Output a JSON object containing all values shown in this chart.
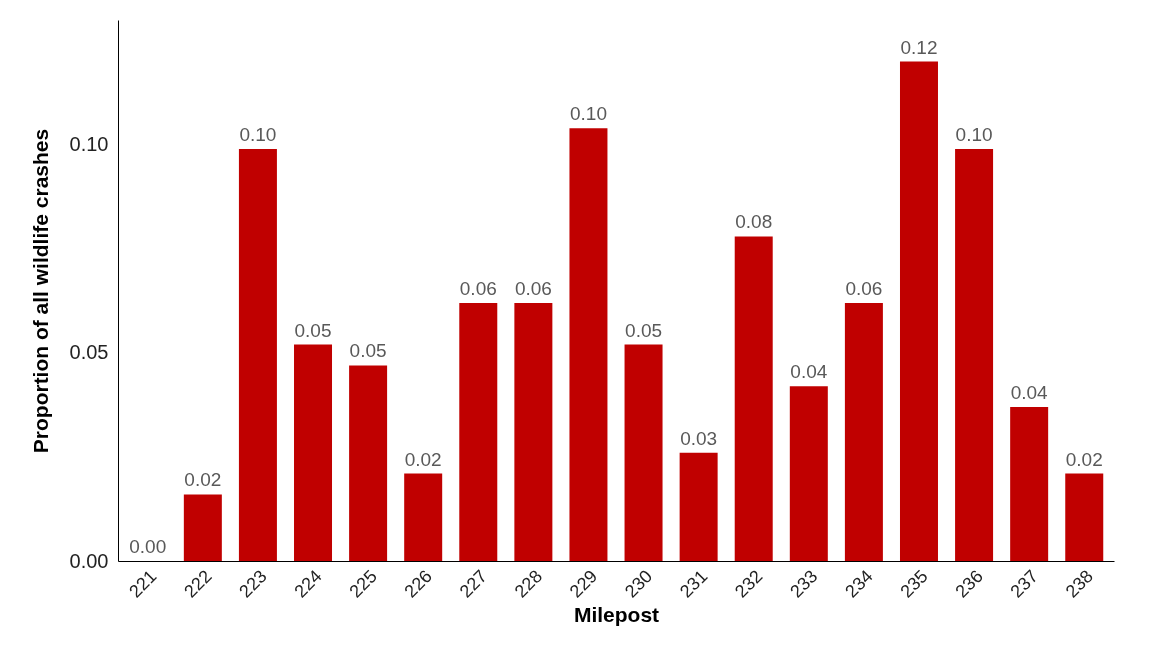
{
  "chart_data": {
    "type": "bar",
    "xlabel": "Milepost",
    "ylabel": "Proportion of all wildlife crashes",
    "categories": [
      "221",
      "222",
      "223",
      "224",
      "225",
      "226",
      "227",
      "228",
      "229",
      "230",
      "231",
      "232",
      "233",
      "234",
      "235",
      "236",
      "237",
      "238"
    ],
    "values": [
      0.0,
      0.016,
      0.099,
      0.052,
      0.047,
      0.021,
      0.062,
      0.062,
      0.104,
      0.052,
      0.026,
      0.078,
      0.042,
      0.062,
      0.12,
      0.099,
      0.037,
      0.021
    ],
    "value_labels": [
      "0.00",
      "0.02",
      "0.10",
      "0.05",
      "0.05",
      "0.02",
      "0.06",
      "0.06",
      "0.10",
      "0.05",
      "0.03",
      "0.08",
      "0.04",
      "0.06",
      "0.12",
      "0.10",
      "0.04",
      "0.02"
    ],
    "color": "#c00000",
    "ylim": [
      0,
      0.13
    ],
    "yticks": [
      {
        "value": 0,
        "label": "0.00"
      },
      {
        "value": 0.05,
        "label": "0.05"
      },
      {
        "value": 0.1,
        "label": "0.10"
      }
    ],
    "grid": false
  }
}
